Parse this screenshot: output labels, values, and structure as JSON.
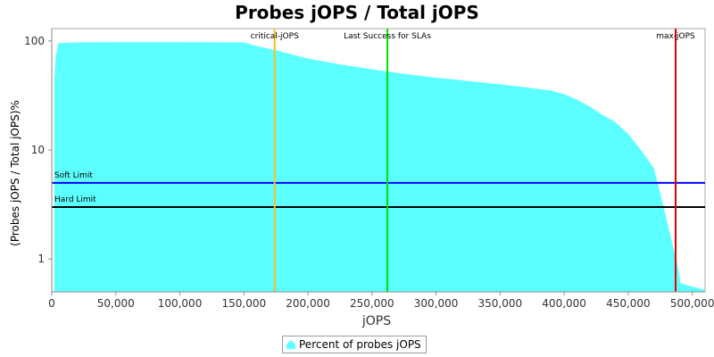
{
  "chart_data": {
    "type": "area",
    "title": "Probes jOPS / Total jOPS",
    "xlabel": "jOPS",
    "ylabel": "(Probes jOPS / Total jOPS)%",
    "y_scale": "log",
    "xlim": [
      0,
      510000
    ],
    "ylim": [
      0.5,
      130
    ],
    "x_ticks": [
      0,
      50000,
      100000,
      150000,
      200000,
      250000,
      300000,
      350000,
      400000,
      450000,
      500000
    ],
    "x_tick_labels": [
      "0",
      "50,000",
      "100,000",
      "150,000",
      "200,000",
      "250,000",
      "300,000",
      "350,000",
      "400,000",
      "450,000",
      "500,000"
    ],
    "y_ticks": [
      1,
      10,
      100
    ],
    "y_tick_labels": [
      "1",
      "10",
      "100"
    ],
    "grid": false,
    "legend_position": "bottom-center",
    "series": [
      {
        "name": "Percent of probes jOPS",
        "color": "#5bffff",
        "x": [
          2000,
          3000,
          5000,
          8000,
          20000,
          50000,
          100000,
          150000,
          160000,
          175000,
          200000,
          225000,
          250000,
          275000,
          300000,
          325000,
          350000,
          375000,
          390000,
          400000,
          410000,
          420000,
          430000,
          440000,
          450000,
          460000,
          470000,
          475000,
          480000,
          484000,
          488000,
          491000,
          495000,
          500000,
          505000,
          510000
        ],
        "y": [
          45,
          70,
          95,
          96,
          97,
          97.5,
          97.5,
          97,
          90,
          82,
          69,
          61,
          55,
          50,
          46,
          43,
          40,
          37,
          35,
          32.5,
          29,
          25,
          21,
          18,
          14,
          10,
          6.8,
          4,
          2.3,
          1.45,
          0.95,
          0.6,
          0.58,
          0.56,
          0.54,
          0.52
        ]
      }
    ],
    "vertical_markers": [
      {
        "label": "critical-jOPS",
        "x": 174000,
        "color": "#ffc020"
      },
      {
        "label": "Last Success for SLAs",
        "x": 262000,
        "color": "#00e000"
      },
      {
        "label": "max-jOPS",
        "x": 487000,
        "color": "#e00000"
      }
    ],
    "horizontal_limits": [
      {
        "label": "Soft Limit",
        "y": 5,
        "color": "#0000ff"
      },
      {
        "label": "Hard Limit",
        "y": 3,
        "color": "#000000"
      }
    ]
  }
}
